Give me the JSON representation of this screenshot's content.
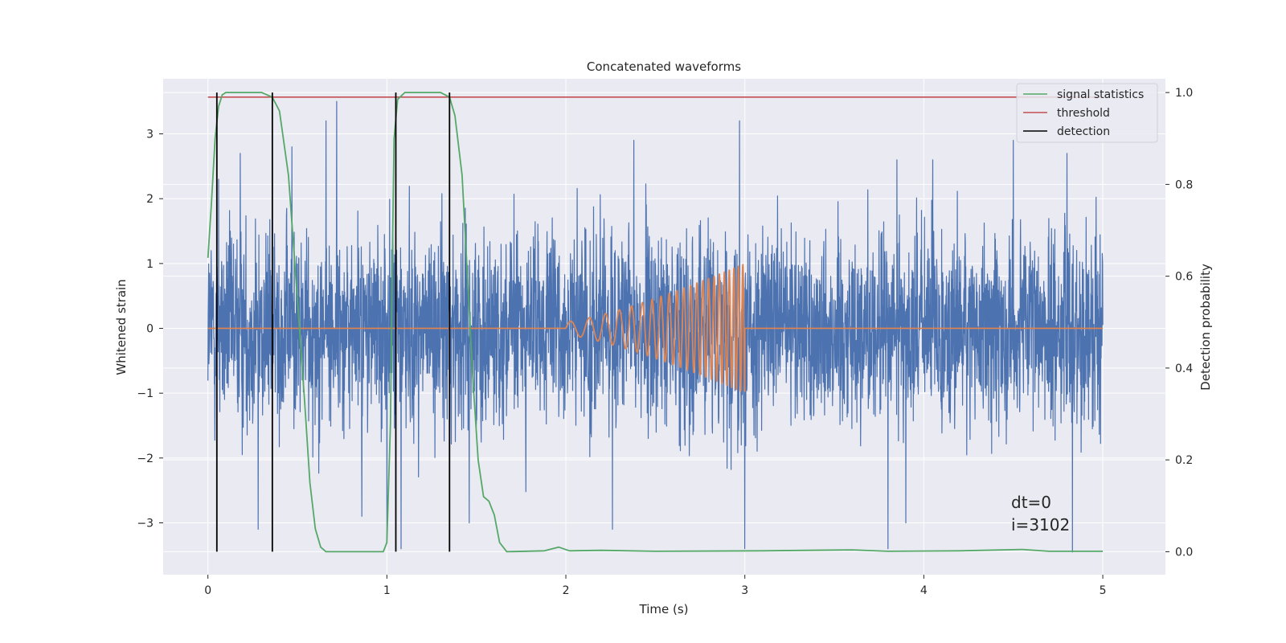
{
  "chart_data": {
    "type": "line",
    "title": "Concatenated waveforms",
    "xlabel": "Time (s)",
    "ylabel": "Whitened strain",
    "ylabel_right": "Detection probability",
    "xlim": [
      -0.25,
      5.35
    ],
    "ylim": [
      -3.8,
      3.85
    ],
    "ylim_right": [
      -0.05,
      1.03
    ],
    "xticks": [
      0,
      1,
      2,
      3,
      4,
      5
    ],
    "yticks": [
      -3,
      -2,
      -1,
      0,
      1,
      2,
      3
    ],
    "yticks_right": [
      0.0,
      0.2,
      0.4,
      0.6,
      0.8,
      1.0
    ],
    "grid": true,
    "legend_position": "top-right",
    "legend": [
      "signal statistics",
      "threshold",
      "detection"
    ],
    "colors": {
      "noise": "#4c72b0",
      "signal": "#dd8452",
      "signal_statistics": "#55a868",
      "threshold": "#c44e52",
      "detection": "#000000",
      "background": "#eaeaf2",
      "grid": "#ffffff"
    },
    "noise": {
      "t_start": 0,
      "t_end": 5,
      "envelope_std": 0.75,
      "peaks": [
        {
          "t": 0.72,
          "y": 3.5
        },
        {
          "t": 0.66,
          "y": 3.2
        },
        {
          "t": 1.0,
          "y": 3.1
        },
        {
          "t": 2.38,
          "y": 2.9
        },
        {
          "t": 2.97,
          "y": 3.2
        },
        {
          "t": 3.85,
          "y": 2.6
        },
        {
          "t": 4.5,
          "y": 2.9
        },
        {
          "t": 4.8,
          "y": 2.7
        },
        {
          "t": 0.47,
          "y": 2.8
        },
        {
          "t": 0.06,
          "y": 2.3
        },
        {
          "t": 0.18,
          "y": 2.7
        },
        {
          "t": 4.05,
          "y": 2.6
        }
      ],
      "troughs": [
        {
          "t": 1.0,
          "y": -3.3
        },
        {
          "t": 1.08,
          "y": -3.4
        },
        {
          "t": 0.28,
          "y": -3.1
        },
        {
          "t": 3.0,
          "y": -3.4
        },
        {
          "t": 3.8,
          "y": -3.4
        },
        {
          "t": 4.83,
          "y": -3.45
        },
        {
          "t": 2.26,
          "y": -3.1
        },
        {
          "t": 0.86,
          "y": -2.9
        },
        {
          "t": 1.46,
          "y": -3.0
        },
        {
          "t": 3.9,
          "y": -3.0
        }
      ]
    },
    "signal": {
      "baseline": 0,
      "chirp_start": 2.0,
      "chirp_end": 3.0,
      "amp_start": 0.1,
      "amp_end": 1.0,
      "freq_start": 9,
      "freq_end": 42,
      "end_value": -0.5
    },
    "signal_statistics": [
      [
        0.0,
        0.64
      ],
      [
        0.02,
        0.76
      ],
      [
        0.04,
        0.9
      ],
      [
        0.06,
        0.97
      ],
      [
        0.08,
        0.995
      ],
      [
        0.1,
        1.0
      ],
      [
        0.3,
        1.0
      ],
      [
        0.36,
        0.99
      ],
      [
        0.4,
        0.96
      ],
      [
        0.45,
        0.82
      ],
      [
        0.5,
        0.55
      ],
      [
        0.54,
        0.33
      ],
      [
        0.57,
        0.15
      ],
      [
        0.6,
        0.05
      ],
      [
        0.63,
        0.01
      ],
      [
        0.66,
        0.0
      ],
      [
        0.98,
        0.0
      ],
      [
        1.0,
        0.02
      ],
      [
        1.02,
        0.28
      ],
      [
        1.03,
        0.62
      ],
      [
        1.04,
        0.9
      ],
      [
        1.06,
        0.985
      ],
      [
        1.1,
        1.0
      ],
      [
        1.3,
        1.0
      ],
      [
        1.35,
        0.99
      ],
      [
        1.38,
        0.95
      ],
      [
        1.42,
        0.82
      ],
      [
        1.45,
        0.6
      ],
      [
        1.48,
        0.38
      ],
      [
        1.51,
        0.2
      ],
      [
        1.54,
        0.12
      ],
      [
        1.57,
        0.11
      ],
      [
        1.6,
        0.08
      ],
      [
        1.63,
        0.02
      ],
      [
        1.67,
        0.0
      ],
      [
        1.88,
        0.002
      ],
      [
        1.96,
        0.01
      ],
      [
        2.02,
        0.002
      ],
      [
        2.2,
        0.003
      ],
      [
        2.5,
        0.001
      ],
      [
        3.1,
        0.002
      ],
      [
        3.6,
        0.004
      ],
      [
        3.8,
        0.001
      ],
      [
        4.2,
        0.002
      ],
      [
        4.55,
        0.005
      ],
      [
        4.7,
        0.001
      ],
      [
        5.0,
        0.001
      ]
    ],
    "threshold": {
      "value": 0.99,
      "x": [
        0,
        5
      ]
    },
    "detections": [
      0.05,
      0.36,
      1.05,
      1.35
    ],
    "annotation": {
      "lines": [
        "dt=0",
        "i=3102"
      ],
      "x": 4.5,
      "y": 0.1
    }
  }
}
